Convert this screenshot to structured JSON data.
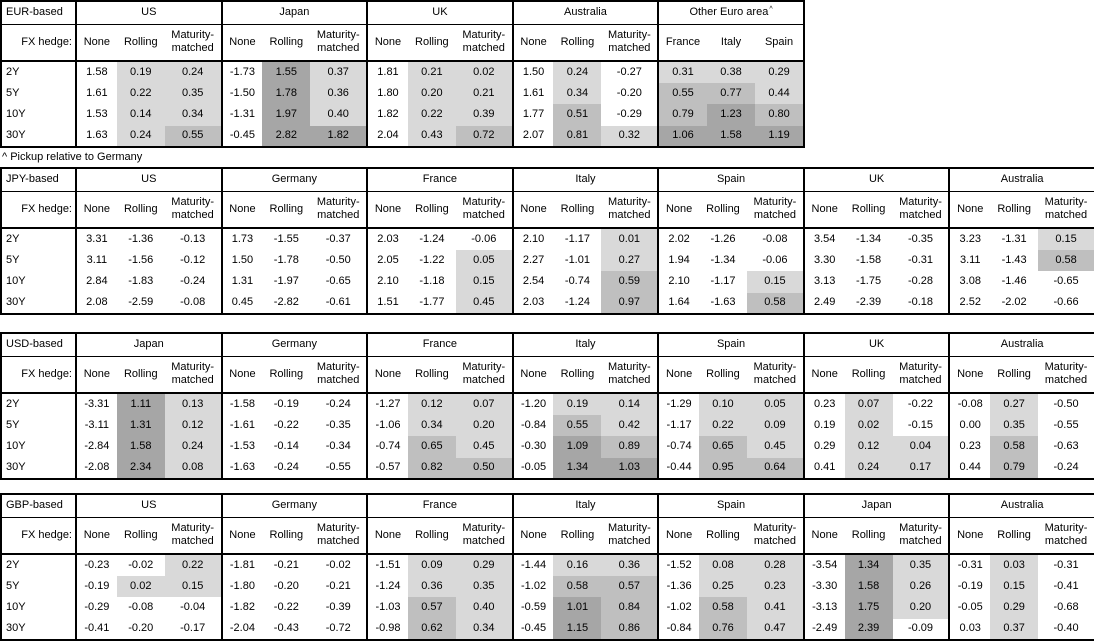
{
  "footnote": "^ Pickup relative to Germany",
  "colors": {
    "shade_light": "#d9d9d9",
    "shade_medium": "#bfbfbf",
    "shade_dark": "#a6a6a6",
    "border": "#000000"
  },
  "shading": {
    "light_min": 0.0,
    "medium_min": 0.5,
    "dark_min": 1.0
  },
  "chart_data": [
    {
      "type": "table",
      "base": "EUR-based",
      "fx_hedge_label": "FX hedge:",
      "tenors": [
        "2Y",
        "5Y",
        "10Y",
        "30Y"
      ],
      "groups": [
        {
          "name": "US",
          "kind": "hedge",
          "columns": [
            "None",
            "Rolling",
            "Maturity-matched"
          ],
          "rows": [
            [
              "1.58",
              "0.19",
              "0.24"
            ],
            [
              "1.61",
              "0.22",
              "0.35"
            ],
            [
              "1.53",
              "0.14",
              "0.34"
            ],
            [
              "1.63",
              "0.24",
              "0.55"
            ]
          ]
        },
        {
          "name": "Japan",
          "kind": "hedge",
          "columns": [
            "None",
            "Rolling",
            "Maturity-matched"
          ],
          "rows": [
            [
              "-1.73",
              "1.55",
              "0.37"
            ],
            [
              "-1.50",
              "1.78",
              "0.36"
            ],
            [
              "-1.31",
              "1.97",
              "0.40"
            ],
            [
              "-0.45",
              "2.82",
              "1.82"
            ]
          ]
        },
        {
          "name": "UK",
          "kind": "hedge",
          "columns": [
            "None",
            "Rolling",
            "Maturity-matched"
          ],
          "rows": [
            [
              "1.81",
              "0.21",
              "0.02"
            ],
            [
              "1.80",
              "0.20",
              "0.21"
            ],
            [
              "1.82",
              "0.22",
              "0.39"
            ],
            [
              "2.04",
              "0.43",
              "0.72"
            ]
          ]
        },
        {
          "name": "Australia",
          "kind": "hedge",
          "columns": [
            "None",
            "Rolling",
            "Maturity-matched"
          ],
          "rows": [
            [
              "1.50",
              "0.24",
              "-0.27"
            ],
            [
              "1.61",
              "0.34",
              "-0.20"
            ],
            [
              "1.77",
              "0.51",
              "-0.29"
            ],
            [
              "2.07",
              "0.81",
              "0.32"
            ]
          ]
        },
        {
          "name": "Other Euro area",
          "footnote_marker": "^",
          "kind": "countries",
          "columns": [
            "France",
            "Italy",
            "Spain"
          ],
          "rows": [
            [
              "0.31",
              "0.38",
              "0.29"
            ],
            [
              "0.55",
              "0.77",
              "0.44"
            ],
            [
              "0.79",
              "1.23",
              "0.80"
            ],
            [
              "1.06",
              "1.58",
              "1.19"
            ]
          ]
        }
      ]
    },
    {
      "type": "table",
      "base": "JPY-based",
      "fx_hedge_label": "FX hedge:",
      "tenors": [
        "2Y",
        "5Y",
        "10Y",
        "30Y"
      ],
      "groups": [
        {
          "name": "US",
          "kind": "hedge",
          "columns": [
            "None",
            "Rolling",
            "Maturity-matched"
          ],
          "rows": [
            [
              "3.31",
              "-1.36",
              "-0.13"
            ],
            [
              "3.11",
              "-1.56",
              "-0.12"
            ],
            [
              "2.84",
              "-1.83",
              "-0.24"
            ],
            [
              "2.08",
              "-2.59",
              "-0.08"
            ]
          ]
        },
        {
          "name": "Germany",
          "kind": "hedge",
          "columns": [
            "None",
            "Rolling",
            "Maturity-matched"
          ],
          "rows": [
            [
              "1.73",
              "-1.55",
              "-0.37"
            ],
            [
              "1.50",
              "-1.78",
              "-0.50"
            ],
            [
              "1.31",
              "-1.97",
              "-0.65"
            ],
            [
              "0.45",
              "-2.82",
              "-0.61"
            ]
          ]
        },
        {
          "name": "France",
          "kind": "hedge",
          "columns": [
            "None",
            "Rolling",
            "Maturity-matched"
          ],
          "rows": [
            [
              "2.03",
              "-1.24",
              "-0.06"
            ],
            [
              "2.05",
              "-1.22",
              "0.05"
            ],
            [
              "2.10",
              "-1.18",
              "0.15"
            ],
            [
              "1.51",
              "-1.77",
              "0.45"
            ]
          ]
        },
        {
          "name": "Italy",
          "kind": "hedge",
          "columns": [
            "None",
            "Rolling",
            "Maturity-matched"
          ],
          "rows": [
            [
              "2.10",
              "-1.17",
              "0.01"
            ],
            [
              "2.27",
              "-1.01",
              "0.27"
            ],
            [
              "2.54",
              "-0.74",
              "0.59"
            ],
            [
              "2.03",
              "-1.24",
              "0.97"
            ]
          ]
        },
        {
          "name": "Spain",
          "kind": "hedge",
          "columns": [
            "None",
            "Rolling",
            "Maturity-matched"
          ],
          "rows": [
            [
              "2.02",
              "-1.26",
              "-0.08"
            ],
            [
              "1.94",
              "-1.34",
              "-0.06"
            ],
            [
              "2.10",
              "-1.17",
              "0.15"
            ],
            [
              "1.64",
              "-1.63",
              "0.58"
            ]
          ]
        },
        {
          "name": "UK",
          "kind": "hedge",
          "columns": [
            "None",
            "Rolling",
            "Maturity-matched"
          ],
          "rows": [
            [
              "3.54",
              "-1.34",
              "-0.35"
            ],
            [
              "3.30",
              "-1.58",
              "-0.31"
            ],
            [
              "3.13",
              "-1.75",
              "-0.28"
            ],
            [
              "2.49",
              "-2.39",
              "-0.18"
            ]
          ]
        },
        {
          "name": "Australia",
          "kind": "hedge",
          "columns": [
            "None",
            "Rolling",
            "Maturity-matched"
          ],
          "rows": [
            [
              "3.23",
              "-1.31",
              "0.15"
            ],
            [
              "3.11",
              "-1.43",
              "0.58"
            ],
            [
              "3.08",
              "-1.46",
              "-0.65"
            ],
            [
              "2.52",
              "-2.02",
              "-0.66"
            ]
          ]
        }
      ]
    },
    {
      "type": "table",
      "base": "USD-based",
      "fx_hedge_label": "FX hedge:",
      "tenors": [
        "2Y",
        "5Y",
        "10Y",
        "30Y"
      ],
      "groups": [
        {
          "name": "Japan",
          "kind": "hedge",
          "columns": [
            "None",
            "Rolling",
            "Maturity-matched"
          ],
          "rows": [
            [
              "-3.31",
              "1.11",
              "0.13"
            ],
            [
              "-3.11",
              "1.31",
              "0.12"
            ],
            [
              "-2.84",
              "1.58",
              "0.24"
            ],
            [
              "-2.08",
              "2.34",
              "0.08"
            ]
          ]
        },
        {
          "name": "Germany",
          "kind": "hedge",
          "columns": [
            "None",
            "Rolling",
            "Maturity-matched"
          ],
          "rows": [
            [
              "-1.58",
              "-0.19",
              "-0.24"
            ],
            [
              "-1.61",
              "-0.22",
              "-0.35"
            ],
            [
              "-1.53",
              "-0.14",
              "-0.34"
            ],
            [
              "-1.63",
              "-0.24",
              "-0.55"
            ]
          ]
        },
        {
          "name": "France",
          "kind": "hedge",
          "columns": [
            "None",
            "Rolling",
            "Maturity-matched"
          ],
          "rows": [
            [
              "-1.27",
              "0.12",
              "0.07"
            ],
            [
              "-1.06",
              "0.34",
              "0.20"
            ],
            [
              "-0.74",
              "0.65",
              "0.45"
            ],
            [
              "-0.57",
              "0.82",
              "0.50"
            ]
          ]
        },
        {
          "name": "Italy",
          "kind": "hedge",
          "columns": [
            "None",
            "Rolling",
            "Maturity-matched"
          ],
          "rows": [
            [
              "-1.20",
              "0.19",
              "0.14"
            ],
            [
              "-0.84",
              "0.55",
              "0.42"
            ],
            [
              "-0.30",
              "1.09",
              "0.89"
            ],
            [
              "-0.05",
              "1.34",
              "1.03"
            ]
          ]
        },
        {
          "name": "Spain",
          "kind": "hedge",
          "columns": [
            "None",
            "Rolling",
            "Maturity-matched"
          ],
          "rows": [
            [
              "-1.29",
              "0.10",
              "0.05"
            ],
            [
              "-1.17",
              "0.22",
              "0.09"
            ],
            [
              "-0.74",
              "0.65",
              "0.45"
            ],
            [
              "-0.44",
              "0.95",
              "0.64"
            ]
          ]
        },
        {
          "name": "UK",
          "kind": "hedge",
          "columns": [
            "None",
            "Rolling",
            "Maturity-matched"
          ],
          "rows": [
            [
              "0.23",
              "0.07",
              "-0.22"
            ],
            [
              "0.19",
              "0.02",
              "-0.15"
            ],
            [
              "0.29",
              "0.12",
              "0.04"
            ],
            [
              "0.41",
              "0.24",
              "0.17"
            ]
          ]
        },
        {
          "name": "Australia",
          "kind": "hedge",
          "columns": [
            "None",
            "Rolling",
            "Maturity-matched"
          ],
          "rows": [
            [
              "-0.08",
              "0.27",
              "-0.50"
            ],
            [
              "0.00",
              "0.35",
              "-0.55"
            ],
            [
              "0.23",
              "0.58",
              "-0.63"
            ],
            [
              "0.44",
              "0.79",
              "-0.24"
            ]
          ]
        }
      ]
    },
    {
      "type": "table",
      "base": "GBP-based",
      "fx_hedge_label": "FX hedge:",
      "tenors": [
        "2Y",
        "5Y",
        "10Y",
        "30Y"
      ],
      "groups": [
        {
          "name": "US",
          "kind": "hedge",
          "columns": [
            "None",
            "Rolling",
            "Maturity-matched"
          ],
          "rows": [
            [
              "-0.23",
              "-0.02",
              "0.22"
            ],
            [
              "-0.19",
              "0.02",
              "0.15"
            ],
            [
              "-0.29",
              "-0.08",
              "-0.04"
            ],
            [
              "-0.41",
              "-0.20",
              "-0.17"
            ]
          ]
        },
        {
          "name": "Germany",
          "kind": "hedge",
          "columns": [
            "None",
            "Rolling",
            "Maturity-matched"
          ],
          "rows": [
            [
              "-1.81",
              "-0.21",
              "-0.02"
            ],
            [
              "-1.80",
              "-0.20",
              "-0.21"
            ],
            [
              "-1.82",
              "-0.22",
              "-0.39"
            ],
            [
              "-2.04",
              "-0.43",
              "-0.72"
            ]
          ]
        },
        {
          "name": "France",
          "kind": "hedge",
          "columns": [
            "None",
            "Rolling",
            "Maturity-matched"
          ],
          "rows": [
            [
              "-1.51",
              "0.09",
              "0.29"
            ],
            [
              "-1.24",
              "0.36",
              "0.35"
            ],
            [
              "-1.03",
              "0.57",
              "0.40"
            ],
            [
              "-0.98",
              "0.62",
              "0.34"
            ]
          ]
        },
        {
          "name": "Italy",
          "kind": "hedge",
          "columns": [
            "None",
            "Rolling",
            "Maturity-matched"
          ],
          "rows": [
            [
              "-1.44",
              "0.16",
              "0.36"
            ],
            [
              "-1.02",
              "0.58",
              "0.57"
            ],
            [
              "-0.59",
              "1.01",
              "0.84"
            ],
            [
              "-0.45",
              "1.15",
              "0.86"
            ]
          ]
        },
        {
          "name": "Spain",
          "kind": "hedge",
          "columns": [
            "None",
            "Rolling",
            "Maturity-matched"
          ],
          "rows": [
            [
              "-1.52",
              "0.08",
              "0.28"
            ],
            [
              "-1.36",
              "0.25",
              "0.23"
            ],
            [
              "-1.02",
              "0.58",
              "0.41"
            ],
            [
              "-0.84",
              "0.76",
              "0.47"
            ]
          ]
        },
        {
          "name": "Japan",
          "kind": "hedge",
          "columns": [
            "None",
            "Rolling",
            "Maturity-matched"
          ],
          "rows": [
            [
              "-3.54",
              "1.34",
              "0.35"
            ],
            [
              "-3.30",
              "1.58",
              "0.26"
            ],
            [
              "-3.13",
              "1.75",
              "0.20"
            ],
            [
              "-2.49",
              "2.39",
              "-0.09"
            ]
          ]
        },
        {
          "name": "Australia",
          "kind": "hedge",
          "columns": [
            "None",
            "Rolling",
            "Maturity-matched"
          ],
          "rows": [
            [
              "-0.31",
              "0.03",
              "-0.31"
            ],
            [
              "-0.19",
              "0.15",
              "-0.41"
            ],
            [
              "-0.05",
              "0.29",
              "-0.68"
            ],
            [
              "0.03",
              "0.37",
              "-0.40"
            ]
          ]
        }
      ]
    }
  ]
}
